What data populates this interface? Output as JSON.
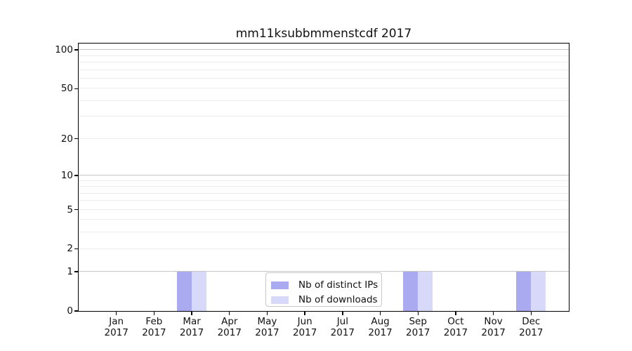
{
  "title": "mm11ksubbmmenstcdf 2017",
  "legend": {
    "items": [
      {
        "label": "Nb of distinct IPs",
        "color": "#aaaaf0"
      },
      {
        "label": "Nb of downloads",
        "color": "#d8d8f8"
      }
    ]
  },
  "chart_data": {
    "type": "bar",
    "title": "mm11ksubbmmenstcdf 2017",
    "categories": [
      "Jan",
      "Feb",
      "Mar",
      "Apr",
      "May",
      "Jun",
      "Jul",
      "Aug",
      "Sep",
      "Oct",
      "Nov",
      "Dec"
    ],
    "x_tick_second_line": "2017",
    "series": [
      {
        "name": "Nb of distinct IPs",
        "color": "#aaaaf0",
        "values": [
          0,
          0,
          1,
          0,
          0,
          0,
          0,
          0,
          1,
          0,
          0,
          1
        ]
      },
      {
        "name": "Nb of downloads",
        "color": "#d8d8f8",
        "values": [
          0,
          0,
          1,
          0,
          0,
          0,
          0,
          0,
          1,
          0,
          0,
          1
        ]
      }
    ],
    "y_axis": {
      "scale": "log1p",
      "labeled_ticks": [
        0,
        1,
        2,
        5,
        10,
        20,
        50,
        100
      ],
      "gridline_values": [
        1,
        2,
        3,
        4,
        5,
        6,
        7,
        8,
        9,
        10,
        20,
        30,
        40,
        50,
        60,
        70,
        80,
        90,
        100
      ],
      "emphasized_gridlines": [
        1,
        10,
        100
      ],
      "ylim": [
        0,
        112
      ]
    },
    "xlabel": "",
    "ylabel": "",
    "grid": true,
    "legend_position": "lower center"
  }
}
